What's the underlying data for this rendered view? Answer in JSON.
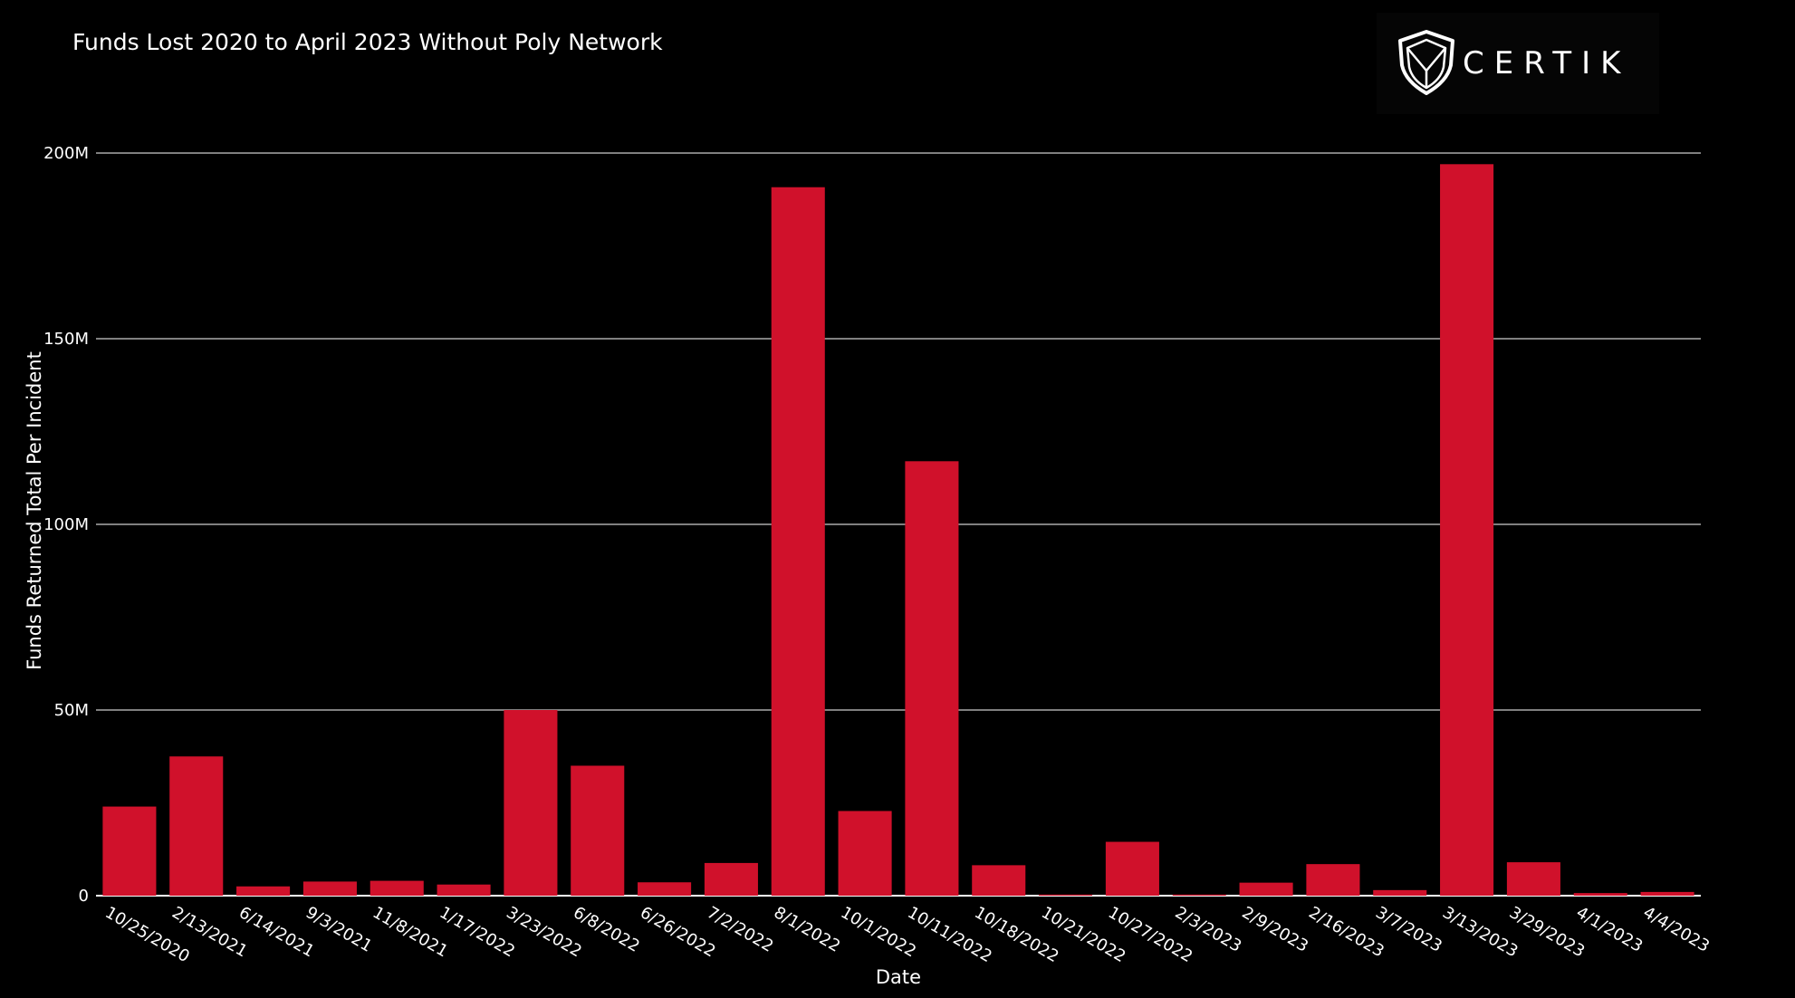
{
  "chart_data": {
    "type": "bar",
    "title": "Funds Lost 2020 to April 2023 Without Poly Network",
    "xlabel": "Date",
    "ylabel": "Funds Returned Total Per Incident",
    "ylim": [
      0,
      200000000
    ],
    "yticks": [
      {
        "value": 0,
        "label": "0"
      },
      {
        "value": 50000000,
        "label": "50M"
      },
      {
        "value": 100000000,
        "label": "100M"
      },
      {
        "value": 150000000,
        "label": "150M"
      },
      {
        "value": 200000000,
        "label": "200M"
      }
    ],
    "grid": true,
    "bar_color": "#d0112b",
    "categories": [
      "10/25/2020",
      "2/13/2021",
      "6/14/2021",
      "9/3/2021",
      "11/8/2021",
      "1/17/2022",
      "3/23/2022",
      "6/8/2022",
      "6/26/2022",
      "7/2/2022",
      "8/1/2022",
      "10/1/2022",
      "10/11/2022",
      "10/18/2022",
      "10/21/2022",
      "10/27/2022",
      "2/3/2023",
      "2/9/2023",
      "2/16/2023",
      "3/7/2023",
      "3/13/2023",
      "3/29/2023",
      "4/1/2023",
      "4/4/2023"
    ],
    "values": [
      24000000,
      37500000,
      2500000,
      3800000,
      4000000,
      3000000,
      50000000,
      35000000,
      3600000,
      8800000,
      190800000,
      22800000,
      117000000,
      8200000,
      300000,
      14500000,
      300000,
      3500000,
      8500000,
      1500000,
      197000000,
      9000000,
      700000,
      1000000
    ]
  },
  "logo": {
    "text": "CERTIK",
    "icon": "certik-shield-icon",
    "background": "#050505"
  },
  "colors": {
    "background": "#000000",
    "text": "#ffffff",
    "gridline": "#ffffff",
    "bar": "#d0112b"
  }
}
